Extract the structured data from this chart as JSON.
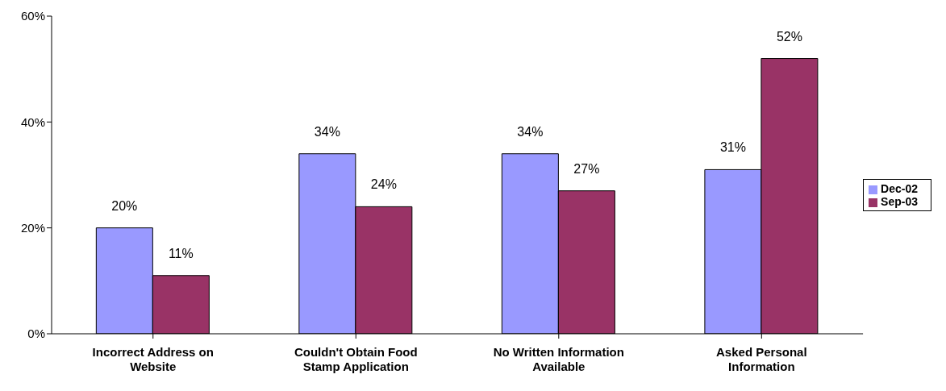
{
  "chart_data": {
    "type": "bar",
    "categories": [
      "Incorrect Address on Website",
      "Couldn't Obtain Food Stamp Application",
      "No Written Information Available",
      "Asked Personal Information"
    ],
    "series": [
      {
        "name": "Dec-02",
        "color": "#9999ff",
        "values": [
          20,
          34,
          34,
          31
        ],
        "value_labels": [
          "20%",
          "34%",
          "34%",
          "31%"
        ]
      },
      {
        "name": "Sep-03",
        "color": "#993366",
        "values": [
          11,
          24,
          27,
          52
        ],
        "value_labels": [
          "11%",
          "24%",
          "27%",
          "52%"
        ]
      }
    ],
    "ylim": [
      0,
      60
    ],
    "yticks": [
      {
        "value": 0,
        "label": "0%"
      },
      {
        "value": 20,
        "label": "20%"
      },
      {
        "value": 40,
        "label": "40%"
      },
      {
        "value": 60,
        "label": "60%"
      }
    ],
    "grid": false,
    "legend": "right"
  }
}
